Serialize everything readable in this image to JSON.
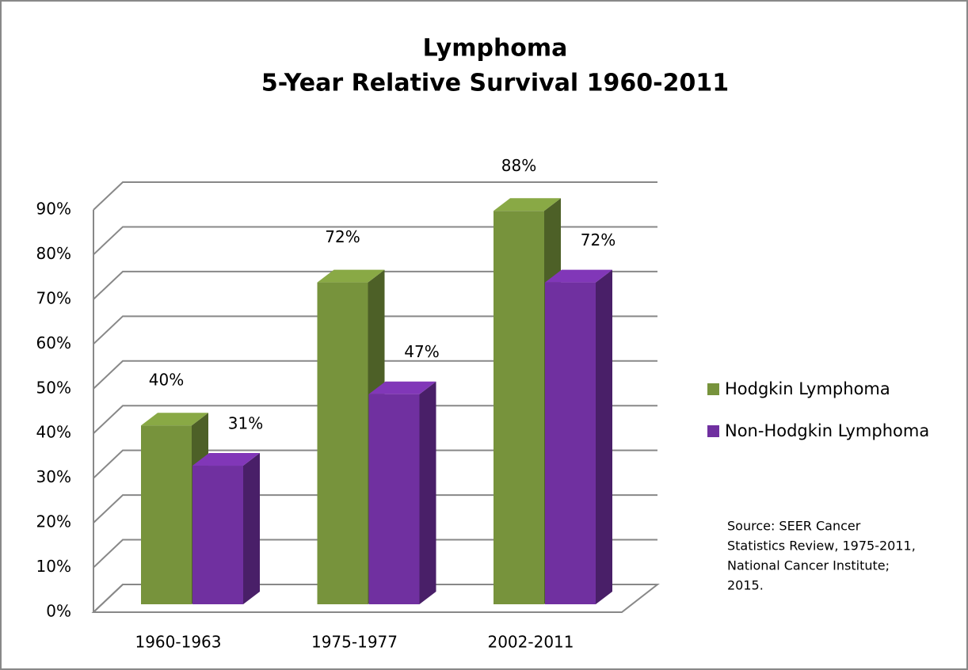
{
  "chart_data": {
    "type": "bar3d",
    "title": "Lymphoma",
    "subtitle": "5-Year Relative Survival 1960-2011",
    "categories": [
      "1960-1963",
      "1975-1977",
      "2002-2011"
    ],
    "series": [
      {
        "name": "Hodgkin Lymphoma",
        "color": "#77933c",
        "values": [
          40,
          72,
          88
        ],
        "value_labels": [
          "40%",
          "72%",
          "88%"
        ]
      },
      {
        "name": "Non-Hodgkin Lymphoma",
        "color": "#7030a0",
        "values": [
          31,
          47,
          72
        ],
        "value_labels": [
          "31%",
          "47%",
          "72%"
        ]
      }
    ],
    "ylim": [
      0,
      90
    ],
    "yticks": [
      {
        "value": 0,
        "label": "0%"
      },
      {
        "value": 10,
        "label": "10%"
      },
      {
        "value": 20,
        "label": "20%"
      },
      {
        "value": 30,
        "label": "30%"
      },
      {
        "value": 40,
        "label": "40%"
      },
      {
        "value": 50,
        "label": "50%"
      },
      {
        "value": 60,
        "label": "60%"
      },
      {
        "value": 70,
        "label": "70%"
      },
      {
        "value": 80,
        "label": "80%"
      },
      {
        "value": 90,
        "label": "90%"
      }
    ],
    "grid": true,
    "legend": "right",
    "annotations": [
      "Source: SEER Cancer",
      "Statistics Review, 1975-2011,",
      "National Cancer Institute;",
      "2015."
    ]
  }
}
